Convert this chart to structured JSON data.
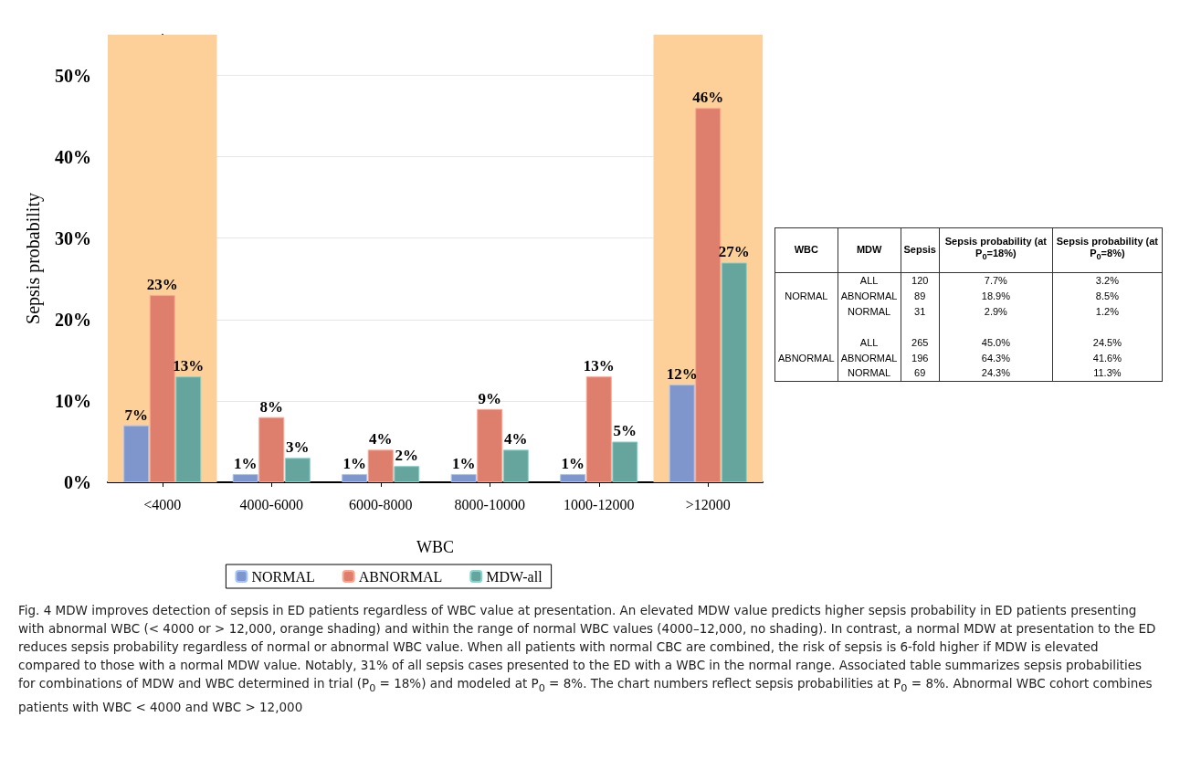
{
  "chart_data": [
    {
      "type": "bar",
      "xlabel": "WBC",
      "ylabel": "Sepsis probability",
      "categories": [
        "<4000",
        "4000-6000",
        "6000-8000",
        "8000-10000",
        "1000-12000",
        ">12000"
      ],
      "series": [
        {
          "name": "NORMAL",
          "color": "#7f96cc",
          "values": [
            7,
            1,
            1,
            1,
            1,
            12
          ],
          "value_labels": [
            "7%",
            "1%",
            "1%",
            "1%",
            "1%",
            "12%"
          ]
        },
        {
          "name": "ABNORMAL",
          "color": "#de7f6e",
          "values": [
            23,
            8,
            4,
            9,
            13,
            46
          ],
          "value_labels": [
            "23%",
            "8%",
            "4%",
            "9%",
            "13%",
            "46%"
          ]
        },
        {
          "name": "MDW-all",
          "color": "#66a59e",
          "values": [
            13,
            3,
            2,
            4,
            5,
            27
          ],
          "value_labels": [
            "13%",
            "3%",
            "2%",
            "4%",
            "5%",
            "27%"
          ]
        }
      ],
      "ylim": [
        0,
        55
      ],
      "yticks": [
        {
          "value": 0,
          "label": "0%"
        },
        {
          "value": 10,
          "label": "10%"
        },
        {
          "value": 20,
          "label": "20%"
        },
        {
          "value": 30,
          "label": "30%"
        },
        {
          "value": 40,
          "label": "40%"
        },
        {
          "value": 50,
          "label": "50%"
        }
      ],
      "bands": [
        {
          "axis": "x",
          "from": "<4000",
          "to": "<4000",
          "color": "#fdd09a"
        },
        {
          "axis": "x",
          "from": ">12000",
          "to": ">12000",
          "color": "#fdd09a"
        }
      ],
      "grid": "y",
      "legend": "bottom",
      "annotations": [
        "Fig. 4 MDW improves detection of sepsis in ED patients regardless of WBC value at presentation. An elevated MDW value predicts higher sepsis probability in ED patients presenting with abnormal WBC (< 4000 or > 12,000, orange shading) and within the range of normal WBC values (4000–12,000, no shading). In contrast, a normal MDW at presentation to the ED reduces sepsis probability regardless of normal or abnormal WBC value. When all patients with normal CBC are combined, the risk of sepsis is 6-fold higher if MDW is elevated compared to those with a normal MDW value. Notably, 31% of all sepsis cases presented to the ED with a WBC in the normal range. Associated table summarizes sepsis probabilities for combinations of MDW and WBC determined in trial (P$_{0}$ = 18%) and modeled at P$_{0}$ = 8%. The chart numbers reflect sepsis probabilities at P$_{0}$ = 8%. Abnormal WBC cohort combines patients with WBC < 4000 and WBC > 12,000"
      ]
    },
    {
      "type": "other",
      "categories": [
        "WBC",
        "MDW",
        "Sepsis",
        "Sepsis probability (at P$_{0}$=18%)",
        "Sepsis probability (at P$_{0}$=8%)"
      ],
      "cell_labels": [
        [
          null,
          "ALL",
          "120",
          "7.7%",
          "3.2%"
        ],
        [
          "NORMAL",
          "ABNORMAL",
          "89",
          "18.9%",
          "8.5%"
        ],
        [
          null,
          "NORMAL",
          "31",
          "2.9%",
          "1.2%"
        ],
        [
          null,
          null,
          null,
          null,
          null
        ],
        [
          null,
          "ALL",
          "265",
          "45.0%",
          "24.5%"
        ],
        [
          "ABNORMAL",
          "ABNORMAL",
          "196",
          "64.3%",
          "41.6%"
        ],
        [
          null,
          "NORMAL",
          "69",
          "24.3%",
          "11.3%"
        ]
      ]
    }
  ]
}
